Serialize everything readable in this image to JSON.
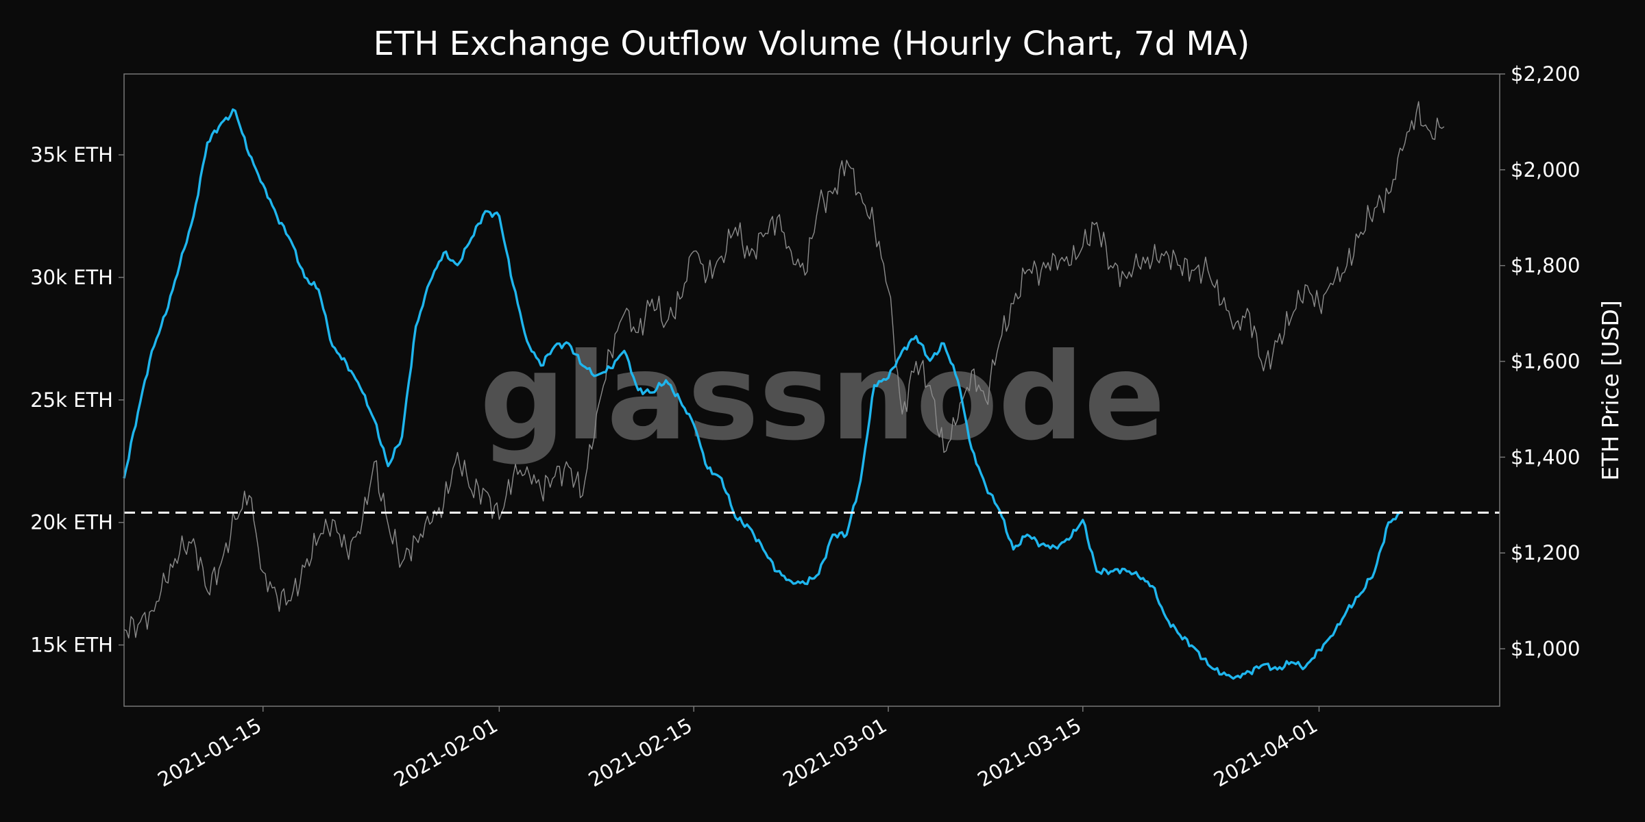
{
  "chart_data": {
    "type": "line",
    "title": "ETH Exchange Outflow Volume (Hourly Chart, 7d MA)",
    "watermark": "glassnode",
    "xlabel": "",
    "ylabel_left": "",
    "ylabel_right": "ETH Price [USD]",
    "x_range": [
      "2021-01-05",
      "2021-04-14"
    ],
    "x_ticks": [
      "2021-01-15",
      "2021-02-01",
      "2021-02-15",
      "2021-03-01",
      "2021-03-15",
      "2021-04-01"
    ],
    "y_left_range": [
      12500,
      38300
    ],
    "y_left_ticks": [
      {
        "value": 15000,
        "label": "15k ETH"
      },
      {
        "value": 20000,
        "label": "20k ETH"
      },
      {
        "value": 25000,
        "label": "25k ETH"
      },
      {
        "value": 30000,
        "label": "30k ETH"
      },
      {
        "value": 35000,
        "label": "35k ETH"
      }
    ],
    "y_right_range": [
      880,
      2200
    ],
    "y_right_ticks": [
      {
        "value": 1000,
        "label": "$1,000"
      },
      {
        "value": 1200,
        "label": "$1,200"
      },
      {
        "value": 1400,
        "label": "$1,400"
      },
      {
        "value": 1600,
        "label": "$1,600"
      },
      {
        "value": 1800,
        "label": "$1,800"
      },
      {
        "value": 2000,
        "label": "$2,000"
      },
      {
        "value": 2200,
        "label": "$2,200"
      }
    ],
    "threshold": {
      "value": 20400,
      "axis": "left",
      "style": "dashed",
      "color": "#ffffff"
    },
    "grid": false,
    "colors": {
      "background": "#0b0b0b",
      "outflow": "#1fb6ee",
      "price": "#8c8c8c",
      "text": "#ffffff",
      "frame": "#777777"
    },
    "series": [
      {
        "name": "",
        "axis": "left",
        "color": "#1fb6ee",
        "points": [
          [
            "2021-01-05",
            21800
          ],
          [
            "2021-01-06",
            24500
          ],
          [
            "2021-01-07",
            27000
          ],
          [
            "2021-01-08",
            28500
          ],
          [
            "2021-01-09",
            30500
          ],
          [
            "2021-01-10",
            32500
          ],
          [
            "2021-01-11",
            35500
          ],
          [
            "2021-01-12",
            36300
          ],
          [
            "2021-01-13",
            36800
          ],
          [
            "2021-01-14",
            35000
          ],
          [
            "2021-01-15",
            33800
          ],
          [
            "2021-01-16",
            32500
          ],
          [
            "2021-01-17",
            31500
          ],
          [
            "2021-01-18",
            30000
          ],
          [
            "2021-01-19",
            29500
          ],
          [
            "2021-01-20",
            27200
          ],
          [
            "2021-01-21",
            26500
          ],
          [
            "2021-01-22",
            25500
          ],
          [
            "2021-01-23",
            24200
          ],
          [
            "2021-01-24",
            22300
          ],
          [
            "2021-01-25",
            23500
          ],
          [
            "2021-01-26",
            28000
          ],
          [
            "2021-01-27",
            29800
          ],
          [
            "2021-01-28",
            31000
          ],
          [
            "2021-01-29",
            30500
          ],
          [
            "2021-01-30",
            31600
          ],
          [
            "2021-01-31",
            32700
          ],
          [
            "2021-02-01",
            32500
          ],
          [
            "2021-02-02",
            29700
          ],
          [
            "2021-02-03",
            27400
          ],
          [
            "2021-02-04",
            26400
          ],
          [
            "2021-02-05",
            27200
          ],
          [
            "2021-02-06",
            27300
          ],
          [
            "2021-02-07",
            26400
          ],
          [
            "2021-02-08",
            26000
          ],
          [
            "2021-02-09",
            26300
          ],
          [
            "2021-02-10",
            27000
          ],
          [
            "2021-02-11",
            25400
          ],
          [
            "2021-02-12",
            25300
          ],
          [
            "2021-02-13",
            25800
          ],
          [
            "2021-02-14",
            25000
          ],
          [
            "2021-02-15",
            24000
          ],
          [
            "2021-02-16",
            22200
          ],
          [
            "2021-02-17",
            21800
          ],
          [
            "2021-02-18",
            20200
          ],
          [
            "2021-02-19",
            19800
          ],
          [
            "2021-02-20",
            18900
          ],
          [
            "2021-02-21",
            18000
          ],
          [
            "2021-02-22",
            17600
          ],
          [
            "2021-02-23",
            17500
          ],
          [
            "2021-02-24",
            17900
          ],
          [
            "2021-02-25",
            19500
          ],
          [
            "2021-02-26",
            19500
          ],
          [
            "2021-02-27",
            21700
          ],
          [
            "2021-02-28",
            25600
          ],
          [
            "2021-03-01",
            25900
          ],
          [
            "2021-03-02",
            27000
          ],
          [
            "2021-03-03",
            27600
          ],
          [
            "2021-03-04",
            26600
          ],
          [
            "2021-03-05",
            27300
          ],
          [
            "2021-03-06",
            25800
          ],
          [
            "2021-03-07",
            23000
          ],
          [
            "2021-03-08",
            21500
          ],
          [
            "2021-03-09",
            20500
          ],
          [
            "2021-03-10",
            18900
          ],
          [
            "2021-03-11",
            19500
          ],
          [
            "2021-03-12",
            19100
          ],
          [
            "2021-03-13",
            19000
          ],
          [
            "2021-03-14",
            19300
          ],
          [
            "2021-03-15",
            20100
          ],
          [
            "2021-03-16",
            18000
          ],
          [
            "2021-03-17",
            18000
          ],
          [
            "2021-03-18",
            18100
          ],
          [
            "2021-03-19",
            17800
          ],
          [
            "2021-03-20",
            17400
          ],
          [
            "2021-03-21",
            16100
          ],
          [
            "2021-03-22",
            15400
          ],
          [
            "2021-03-23",
            14900
          ],
          [
            "2021-03-24",
            14200
          ],
          [
            "2021-03-25",
            13800
          ],
          [
            "2021-03-26",
            13700
          ],
          [
            "2021-03-27",
            13900
          ],
          [
            "2021-03-28",
            14200
          ],
          [
            "2021-03-29",
            14000
          ],
          [
            "2021-03-30",
            14300
          ],
          [
            "2021-03-31",
            14100
          ],
          [
            "2021-04-01",
            14800
          ],
          [
            "2021-04-02",
            15400
          ],
          [
            "2021-04-03",
            16400
          ],
          [
            "2021-04-04",
            17100
          ],
          [
            "2021-04-05",
            18000
          ],
          [
            "2021-04-06",
            20000
          ],
          [
            "2021-04-07",
            20400
          ]
        ]
      },
      {
        "name": "",
        "axis": "right",
        "color": "#8c8c8c",
        "points": [
          [
            "2021-01-05",
            1040
          ],
          [
            "2021-01-06",
            1050
          ],
          [
            "2021-01-07",
            1080
          ],
          [
            "2021-01-08",
            1140
          ],
          [
            "2021-01-09",
            1200
          ],
          [
            "2021-01-10",
            1230
          ],
          [
            "2021-01-11",
            1120
          ],
          [
            "2021-01-12",
            1180
          ],
          [
            "2021-01-13",
            1270
          ],
          [
            "2021-01-14",
            1320
          ],
          [
            "2021-01-15",
            1160
          ],
          [
            "2021-01-16",
            1110
          ],
          [
            "2021-01-17",
            1100
          ],
          [
            "2021-01-18",
            1170
          ],
          [
            "2021-01-19",
            1230
          ],
          [
            "2021-01-20",
            1270
          ],
          [
            "2021-01-21",
            1210
          ],
          [
            "2021-01-22",
            1240
          ],
          [
            "2021-01-23",
            1390
          ],
          [
            "2021-01-24",
            1260
          ],
          [
            "2021-01-25",
            1180
          ],
          [
            "2021-01-26",
            1230
          ],
          [
            "2021-01-27",
            1260
          ],
          [
            "2021-01-28",
            1300
          ],
          [
            "2021-01-29",
            1410
          ],
          [
            "2021-01-30",
            1330
          ],
          [
            "2021-01-31",
            1330
          ],
          [
            "2021-02-01",
            1270
          ],
          [
            "2021-02-02",
            1360
          ],
          [
            "2021-02-03",
            1380
          ],
          [
            "2021-02-04",
            1330
          ],
          [
            "2021-02-05",
            1360
          ],
          [
            "2021-02-06",
            1380
          ],
          [
            "2021-02-07",
            1320
          ],
          [
            "2021-02-08",
            1490
          ],
          [
            "2021-02-09",
            1620
          ],
          [
            "2021-02-10",
            1700
          ],
          [
            "2021-02-11",
            1660
          ],
          [
            "2021-02-12",
            1730
          ],
          [
            "2021-02-13",
            1680
          ],
          [
            "2021-02-14",
            1730
          ],
          [
            "2021-02-15",
            1830
          ],
          [
            "2021-02-16",
            1780
          ],
          [
            "2021-02-17",
            1820
          ],
          [
            "2021-02-18",
            1880
          ],
          [
            "2021-02-19",
            1820
          ],
          [
            "2021-02-20",
            1860
          ],
          [
            "2021-02-21",
            1900
          ],
          [
            "2021-02-22",
            1830
          ],
          [
            "2021-02-23",
            1780
          ],
          [
            "2021-02-24",
            1930
          ],
          [
            "2021-02-25",
            1950
          ],
          [
            "2021-02-26",
            2020
          ],
          [
            "2021-02-27",
            1950
          ],
          [
            "2021-02-28",
            1880
          ],
          [
            "2021-03-01",
            1750
          ],
          [
            "2021-03-02",
            1490
          ],
          [
            "2021-03-03",
            1600
          ],
          [
            "2021-03-04",
            1550
          ],
          [
            "2021-03-05",
            1410
          ],
          [
            "2021-03-06",
            1480
          ],
          [
            "2021-03-07",
            1580
          ],
          [
            "2021-03-08",
            1520
          ],
          [
            "2021-03-09",
            1640
          ],
          [
            "2021-03-10",
            1720
          ],
          [
            "2021-03-11",
            1790
          ],
          [
            "2021-03-12",
            1790
          ],
          [
            "2021-03-13",
            1820
          ],
          [
            "2021-03-14",
            1800
          ],
          [
            "2021-03-15",
            1840
          ],
          [
            "2021-03-16",
            1890
          ],
          [
            "2021-03-17",
            1800
          ],
          [
            "2021-03-18",
            1780
          ],
          [
            "2021-03-19",
            1800
          ],
          [
            "2021-03-20",
            1810
          ],
          [
            "2021-03-21",
            1830
          ],
          [
            "2021-03-22",
            1800
          ],
          [
            "2021-03-23",
            1790
          ],
          [
            "2021-03-24",
            1790
          ],
          [
            "2021-03-25",
            1720
          ],
          [
            "2021-03-26",
            1680
          ],
          [
            "2021-03-27",
            1700
          ],
          [
            "2021-03-28",
            1580
          ],
          [
            "2021-03-29",
            1640
          ],
          [
            "2021-03-30",
            1690
          ],
          [
            "2021-03-31",
            1760
          ],
          [
            "2021-04-01",
            1720
          ],
          [
            "2021-04-02",
            1760
          ],
          [
            "2021-04-03",
            1800
          ],
          [
            "2021-04-04",
            1870
          ],
          [
            "2021-04-05",
            1920
          ],
          [
            "2021-04-06",
            1950
          ],
          [
            "2021-04-07",
            2040
          ],
          [
            "2021-04-08",
            2120
          ],
          [
            "2021-04-09",
            2080
          ],
          [
            "2021-04-10",
            2090
          ]
        ]
      }
    ]
  }
}
